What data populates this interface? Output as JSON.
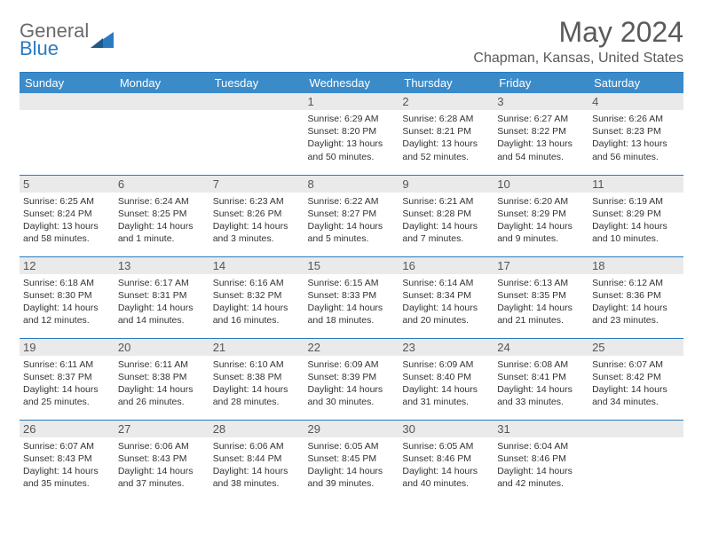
{
  "logo": {
    "general": "General",
    "blue": "Blue"
  },
  "title": "May 2024",
  "subtitle": "Chapman, Kansas, United States",
  "colors": {
    "header_bg": "#3b8bc9",
    "accent_line": "#2a7bbf",
    "daynum_bg": "#eaeaea",
    "text": "#333333",
    "title_text": "#5a5a5a"
  },
  "weekdays": [
    "Sunday",
    "Monday",
    "Tuesday",
    "Wednesday",
    "Thursday",
    "Friday",
    "Saturday"
  ],
  "weeks": [
    [
      null,
      null,
      null,
      {
        "day": "1",
        "sunrise": "Sunrise: 6:29 AM",
        "sunset": "Sunset: 8:20 PM",
        "daylight1": "Daylight: 13 hours",
        "daylight2": "and 50 minutes."
      },
      {
        "day": "2",
        "sunrise": "Sunrise: 6:28 AM",
        "sunset": "Sunset: 8:21 PM",
        "daylight1": "Daylight: 13 hours",
        "daylight2": "and 52 minutes."
      },
      {
        "day": "3",
        "sunrise": "Sunrise: 6:27 AM",
        "sunset": "Sunset: 8:22 PM",
        "daylight1": "Daylight: 13 hours",
        "daylight2": "and 54 minutes."
      },
      {
        "day": "4",
        "sunrise": "Sunrise: 6:26 AM",
        "sunset": "Sunset: 8:23 PM",
        "daylight1": "Daylight: 13 hours",
        "daylight2": "and 56 minutes."
      }
    ],
    [
      {
        "day": "5",
        "sunrise": "Sunrise: 6:25 AM",
        "sunset": "Sunset: 8:24 PM",
        "daylight1": "Daylight: 13 hours",
        "daylight2": "and 58 minutes."
      },
      {
        "day": "6",
        "sunrise": "Sunrise: 6:24 AM",
        "sunset": "Sunset: 8:25 PM",
        "daylight1": "Daylight: 14 hours",
        "daylight2": "and 1 minute."
      },
      {
        "day": "7",
        "sunrise": "Sunrise: 6:23 AM",
        "sunset": "Sunset: 8:26 PM",
        "daylight1": "Daylight: 14 hours",
        "daylight2": "and 3 minutes."
      },
      {
        "day": "8",
        "sunrise": "Sunrise: 6:22 AM",
        "sunset": "Sunset: 8:27 PM",
        "daylight1": "Daylight: 14 hours",
        "daylight2": "and 5 minutes."
      },
      {
        "day": "9",
        "sunrise": "Sunrise: 6:21 AM",
        "sunset": "Sunset: 8:28 PM",
        "daylight1": "Daylight: 14 hours",
        "daylight2": "and 7 minutes."
      },
      {
        "day": "10",
        "sunrise": "Sunrise: 6:20 AM",
        "sunset": "Sunset: 8:29 PM",
        "daylight1": "Daylight: 14 hours",
        "daylight2": "and 9 minutes."
      },
      {
        "day": "11",
        "sunrise": "Sunrise: 6:19 AM",
        "sunset": "Sunset: 8:29 PM",
        "daylight1": "Daylight: 14 hours",
        "daylight2": "and 10 minutes."
      }
    ],
    [
      {
        "day": "12",
        "sunrise": "Sunrise: 6:18 AM",
        "sunset": "Sunset: 8:30 PM",
        "daylight1": "Daylight: 14 hours",
        "daylight2": "and 12 minutes."
      },
      {
        "day": "13",
        "sunrise": "Sunrise: 6:17 AM",
        "sunset": "Sunset: 8:31 PM",
        "daylight1": "Daylight: 14 hours",
        "daylight2": "and 14 minutes."
      },
      {
        "day": "14",
        "sunrise": "Sunrise: 6:16 AM",
        "sunset": "Sunset: 8:32 PM",
        "daylight1": "Daylight: 14 hours",
        "daylight2": "and 16 minutes."
      },
      {
        "day": "15",
        "sunrise": "Sunrise: 6:15 AM",
        "sunset": "Sunset: 8:33 PM",
        "daylight1": "Daylight: 14 hours",
        "daylight2": "and 18 minutes."
      },
      {
        "day": "16",
        "sunrise": "Sunrise: 6:14 AM",
        "sunset": "Sunset: 8:34 PM",
        "daylight1": "Daylight: 14 hours",
        "daylight2": "and 20 minutes."
      },
      {
        "day": "17",
        "sunrise": "Sunrise: 6:13 AM",
        "sunset": "Sunset: 8:35 PM",
        "daylight1": "Daylight: 14 hours",
        "daylight2": "and 21 minutes."
      },
      {
        "day": "18",
        "sunrise": "Sunrise: 6:12 AM",
        "sunset": "Sunset: 8:36 PM",
        "daylight1": "Daylight: 14 hours",
        "daylight2": "and 23 minutes."
      }
    ],
    [
      {
        "day": "19",
        "sunrise": "Sunrise: 6:11 AM",
        "sunset": "Sunset: 8:37 PM",
        "daylight1": "Daylight: 14 hours",
        "daylight2": "and 25 minutes."
      },
      {
        "day": "20",
        "sunrise": "Sunrise: 6:11 AM",
        "sunset": "Sunset: 8:38 PM",
        "daylight1": "Daylight: 14 hours",
        "daylight2": "and 26 minutes."
      },
      {
        "day": "21",
        "sunrise": "Sunrise: 6:10 AM",
        "sunset": "Sunset: 8:38 PM",
        "daylight1": "Daylight: 14 hours",
        "daylight2": "and 28 minutes."
      },
      {
        "day": "22",
        "sunrise": "Sunrise: 6:09 AM",
        "sunset": "Sunset: 8:39 PM",
        "daylight1": "Daylight: 14 hours",
        "daylight2": "and 30 minutes."
      },
      {
        "day": "23",
        "sunrise": "Sunrise: 6:09 AM",
        "sunset": "Sunset: 8:40 PM",
        "daylight1": "Daylight: 14 hours",
        "daylight2": "and 31 minutes."
      },
      {
        "day": "24",
        "sunrise": "Sunrise: 6:08 AM",
        "sunset": "Sunset: 8:41 PM",
        "daylight1": "Daylight: 14 hours",
        "daylight2": "and 33 minutes."
      },
      {
        "day": "25",
        "sunrise": "Sunrise: 6:07 AM",
        "sunset": "Sunset: 8:42 PM",
        "daylight1": "Daylight: 14 hours",
        "daylight2": "and 34 minutes."
      }
    ],
    [
      {
        "day": "26",
        "sunrise": "Sunrise: 6:07 AM",
        "sunset": "Sunset: 8:43 PM",
        "daylight1": "Daylight: 14 hours",
        "daylight2": "and 35 minutes."
      },
      {
        "day": "27",
        "sunrise": "Sunrise: 6:06 AM",
        "sunset": "Sunset: 8:43 PM",
        "daylight1": "Daylight: 14 hours",
        "daylight2": "and 37 minutes."
      },
      {
        "day": "28",
        "sunrise": "Sunrise: 6:06 AM",
        "sunset": "Sunset: 8:44 PM",
        "daylight1": "Daylight: 14 hours",
        "daylight2": "and 38 minutes."
      },
      {
        "day": "29",
        "sunrise": "Sunrise: 6:05 AM",
        "sunset": "Sunset: 8:45 PM",
        "daylight1": "Daylight: 14 hours",
        "daylight2": "and 39 minutes."
      },
      {
        "day": "30",
        "sunrise": "Sunrise: 6:05 AM",
        "sunset": "Sunset: 8:46 PM",
        "daylight1": "Daylight: 14 hours",
        "daylight2": "and 40 minutes."
      },
      {
        "day": "31",
        "sunrise": "Sunrise: 6:04 AM",
        "sunset": "Sunset: 8:46 PM",
        "daylight1": "Daylight: 14 hours",
        "daylight2": "and 42 minutes."
      },
      null
    ]
  ]
}
